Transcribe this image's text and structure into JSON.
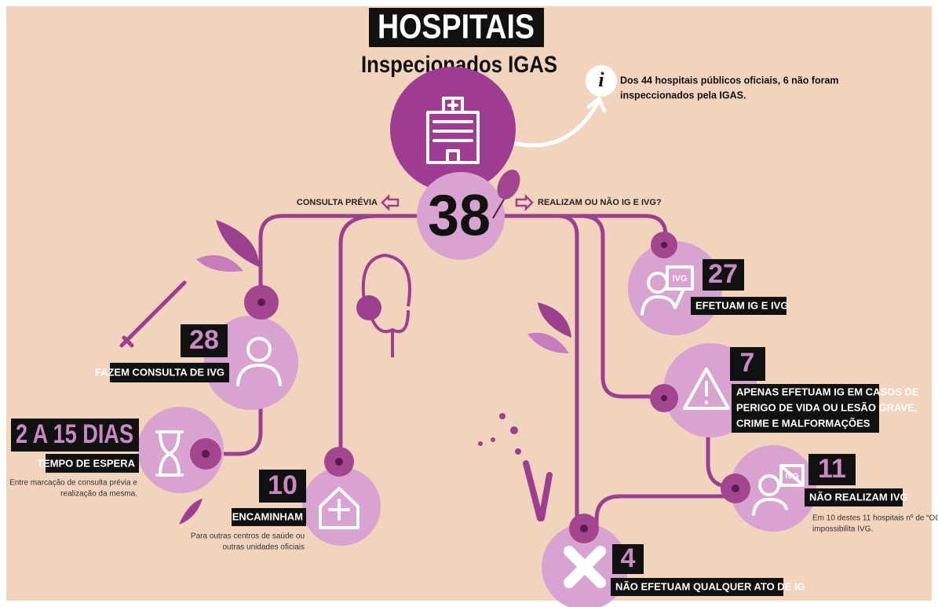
{
  "header": {
    "title": "HOSPITAIS",
    "subtitle": "Inspecionados IGAS"
  },
  "info_note": {
    "lines": [
      "Dos 44 hospitais públicos oficiais, 6 não foram",
      "inspeccionados pela IGAS."
    ]
  },
  "total": {
    "value": 38,
    "left_label": "CONSULTA PRÉVIA",
    "right_label": "REALIZAM OU NÃO IG E IVG?"
  },
  "nodes": [
    {
      "value": 28,
      "label": [
        "FAZEM CONSULTA DE IVG"
      ]
    },
    {
      "value": "2 A 15 DIAS",
      "label": [
        "TEMPO DE ESPERA"
      ],
      "note": [
        "Entre marcação de consulta prévia e",
        "realização da mesma."
      ]
    },
    {
      "value": 10,
      "label": [
        "ENCAMINHAM"
      ],
      "note": [
        "Para outras centros de saúde ou",
        "outras unidades oficiais"
      ]
    },
    {
      "value": 27,
      "label": [
        "EFETUAM IG E IVG"
      ],
      "sign": "IVG"
    },
    {
      "value": 7,
      "label": [
        "APENAS EFETUAM IG EM CASOS DE",
        "PERIGO DE VIDA OU LESÃO GRAVE,",
        "CRIME E MALFORMAÇÕES"
      ]
    },
    {
      "value": 11,
      "label": [
        "NÃO REALIZAM IVG"
      ],
      "note": [
        "Em 10 destes 11 hospitais nº de “OC”",
        "impossibilita IVG."
      ],
      "sign": "IVG"
    },
    {
      "value": 4,
      "label": [
        "NÃO EFETUAM QUALQUER ATO DE IG"
      ]
    }
  ]
}
